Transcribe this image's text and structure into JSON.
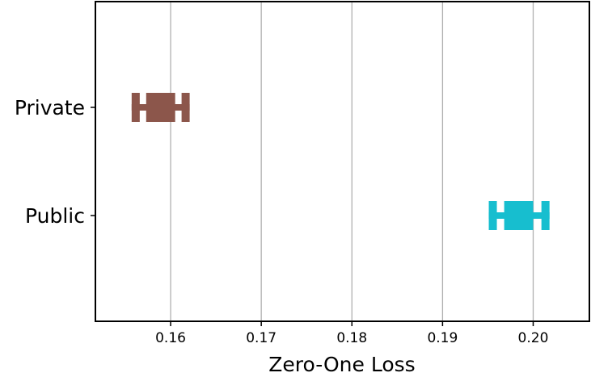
{
  "chart_data": {
    "type": "errorbar",
    "xlabel": "Zero-One Loss",
    "ylabel": "",
    "xlim": [
      0.1517,
      0.2062
    ],
    "x_ticks": [
      "0.16",
      "0.17",
      "0.18",
      "0.19",
      "0.20"
    ],
    "x_tick_values": [
      0.16,
      0.17,
      0.18,
      0.19,
      0.2
    ],
    "grid": "vertical",
    "categories": [
      "Private",
      "Public"
    ],
    "series": [
      {
        "category": "Private",
        "center": 0.1589,
        "iqr": [
          0.1573,
          0.1605
        ],
        "whisker": [
          0.1557,
          0.1621
        ],
        "color": "#8c564b"
      },
      {
        "category": "Public",
        "center": 0.1984,
        "iqr": [
          0.1968,
          0.2
        ],
        "whisker": [
          0.1951,
          0.2018
        ],
        "color": "#17becf"
      }
    ]
  }
}
